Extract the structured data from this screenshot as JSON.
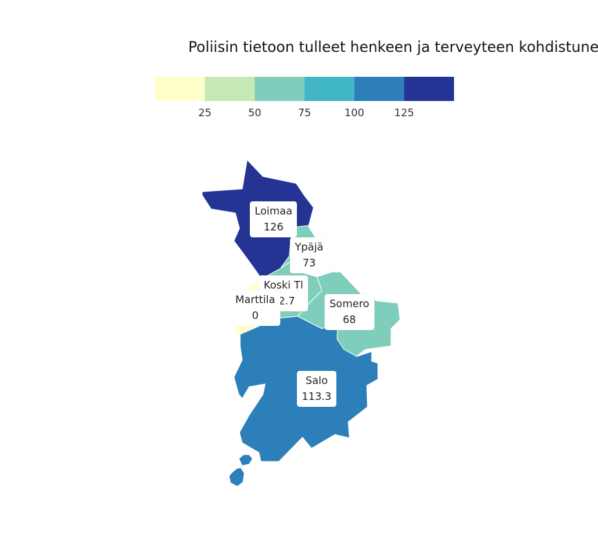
{
  "title": "Poliisin tietoon tulleet henkeen ja terveyteen kohdistune",
  "legend": {
    "colors": [
      "#ffffcc",
      "#c7e9b4",
      "#7fcdbb",
      "#41b6c4",
      "#2c7fb8",
      "#253494"
    ],
    "ticks": [
      "25",
      "50",
      "75",
      "100",
      "125"
    ]
  },
  "regions": [
    {
      "name": "Loimaa",
      "value": "126",
      "color": "#253494"
    },
    {
      "name": "Ypäjä",
      "value": "73",
      "color": "#7fcdbb"
    },
    {
      "name": "Koski Tl",
      "value": "52.7",
      "color": "#7fcdbb"
    },
    {
      "name": "Marttila",
      "value": "0",
      "color": "#ffffcc"
    },
    {
      "name": "Somero",
      "value": "68",
      "color": "#7fcdbb"
    },
    {
      "name": "Salo",
      "value": "113.3",
      "color": "#2c7fb8"
    }
  ]
}
